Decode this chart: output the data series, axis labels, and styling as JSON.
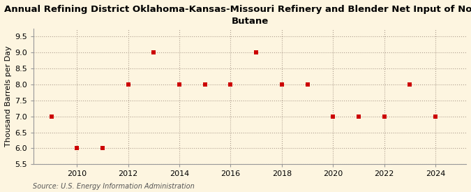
{
  "title": "Annual Refining District Oklahoma-Kansas-Missouri Refinery and Blender Net Input of Normal\nButane",
  "ylabel": "Thousand Barrels per Day",
  "source": "Source: U.S. Energy Information Administration",
  "background_color": "#fdf5e0",
  "plot_bg_color": "#fdf5e0",
  "x_values": [
    2009,
    2010,
    2011,
    2012,
    2013,
    2014,
    2015,
    2016,
    2017,
    2018,
    2019,
    2020,
    2021,
    2022,
    2023,
    2024
  ],
  "y_values": [
    7.0,
    6.0,
    6.0,
    8.0,
    9.0,
    8.0,
    8.0,
    8.0,
    9.0,
    8.0,
    8.0,
    7.0,
    7.0,
    7.0,
    8.0,
    7.0
  ],
  "marker_color": "#cc0000",
  "marker_style": "s",
  "marker_size": 4,
  "ylim": [
    5.5,
    9.75
  ],
  "yticks": [
    5.5,
    6.0,
    6.5,
    7.0,
    7.5,
    8.0,
    8.5,
    9.0,
    9.5
  ],
  "ytick_labels": [
    "5.5",
    "6.0",
    "6.5",
    "7.0",
    "7.5",
    "8.0",
    "8.5",
    "9.0",
    "9.5"
  ],
  "xlim": [
    2008.3,
    2025.2
  ],
  "xticks": [
    2010,
    2012,
    2014,
    2016,
    2018,
    2020,
    2022,
    2024
  ],
  "title_fontsize": 9.5,
  "axis_label_fontsize": 8,
  "tick_fontsize": 8,
  "source_fontsize": 7,
  "grid_color": "#b0a090",
  "grid_linestyle": ":",
  "grid_linewidth": 0.8,
  "spine_color": "#999999"
}
